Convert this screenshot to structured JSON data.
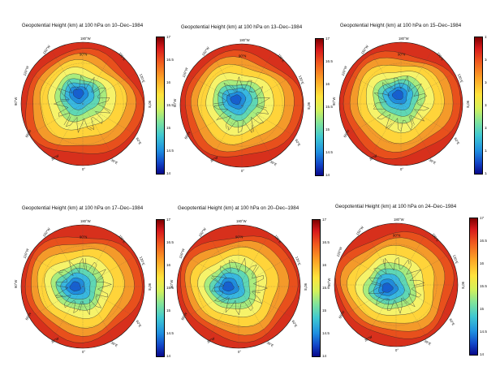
{
  "panels": [
    {
      "title": "Geopotential Height (km) at 100 hPa on 10–Dec–1984"
    },
    {
      "title": "Geopotential Height (km) at 100 hPa on 13–Dec–1984"
    },
    {
      "title": "Geopotential Height (km) at 100 hPa on 15–Dec–1984"
    },
    {
      "title": "Geopotential Height (km) at 100 hPa on 17–Dec–1984"
    },
    {
      "title": "Geopotential Height (km) at 100 hPa on 20–Dec–1984"
    },
    {
      "title": "Geopotential Height (km) at 100 hPa on 24–Dec–1984"
    }
  ],
  "colorbar": {
    "ticks": [
      "17",
      "16.5",
      "16",
      "15.5",
      "15",
      "14.5",
      "14"
    ],
    "range": [
      14,
      17
    ],
    "colormap": [
      "#08088a",
      "#1246c8",
      "#1e8fe0",
      "#3fc8d2",
      "#7fe39c",
      "#d4f15a",
      "#ffe33b",
      "#fca325",
      "#f05a1e",
      "#d7191c",
      "#7f0000"
    ]
  },
  "map_labels": {
    "top": "180°W",
    "pole": "90°N",
    "bottom": "0°",
    "upper_left": "150°W",
    "upper_right": "150°E",
    "mid_upper_left": "120°W",
    "mid_upper_right": "120°E",
    "left": "90°W",
    "right": "90°E",
    "lower_left": "60°W",
    "lower_right": "60°E",
    "bottom_left": "30°W",
    "bottom_right": "30°E"
  }
}
